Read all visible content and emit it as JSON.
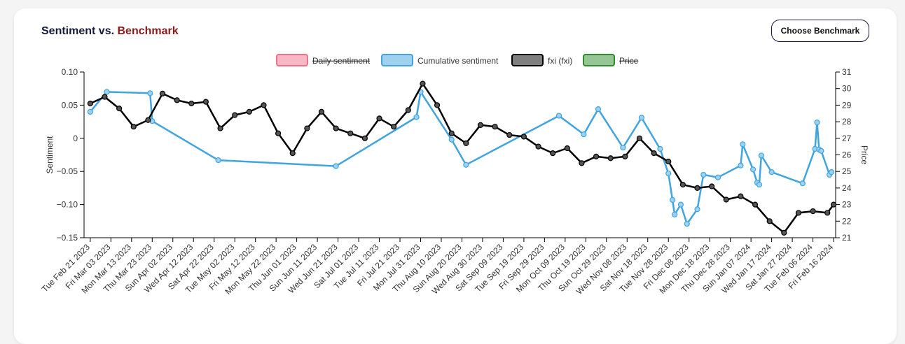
{
  "header": {
    "title": "Sentiment vs.",
    "title_highlight": "Benchmark",
    "button": "Choose Benchmark"
  },
  "chart_data": {
    "type": "line",
    "y_label": "Sentiment",
    "y2_label": "Price",
    "xlim": [
      "2023-02-18",
      "2024-02-17"
    ],
    "xticks": [
      {
        "value": "2023-02-21",
        "label": "Tue Feb 21 2023"
      },
      {
        "value": "2023-03-03",
        "label": "Fri Mar 03 2023"
      },
      {
        "value": "2023-03-13",
        "label": "Mon Mar 13 2023"
      },
      {
        "value": "2023-03-23",
        "label": "Thu Mar 23 2023"
      },
      {
        "value": "2023-04-02",
        "label": "Sun Apr 02 2023"
      },
      {
        "value": "2023-04-12",
        "label": "Wed Apr 12 2023"
      },
      {
        "value": "2023-04-22",
        "label": "Sat Apr 22 2023"
      },
      {
        "value": "2023-05-02",
        "label": "Tue May 02 2023"
      },
      {
        "value": "2023-05-12",
        "label": "Fri May 12 2023"
      },
      {
        "value": "2023-05-22",
        "label": "Mon May 22 2023"
      },
      {
        "value": "2023-06-01",
        "label": "Thu Jun 01 2023"
      },
      {
        "value": "2023-06-11",
        "label": "Sun Jun 11 2023"
      },
      {
        "value": "2023-06-21",
        "label": "Wed Jun 21 2023"
      },
      {
        "value": "2023-07-01",
        "label": "Sat Jul 01 2023"
      },
      {
        "value": "2023-07-11",
        "label": "Tue Jul 11 2023"
      },
      {
        "value": "2023-07-21",
        "label": "Fri Jul 21 2023"
      },
      {
        "value": "2023-07-31",
        "label": "Mon Jul 31 2023"
      },
      {
        "value": "2023-08-10",
        "label": "Thu Aug 10 2023"
      },
      {
        "value": "2023-08-20",
        "label": "Sun Aug 20 2023"
      },
      {
        "value": "2023-08-30",
        "label": "Wed Aug 30 2023"
      },
      {
        "value": "2023-09-09",
        "label": "Sat Sep 09 2023"
      },
      {
        "value": "2023-09-19",
        "label": "Tue Sep 19 2023"
      },
      {
        "value": "2023-09-29",
        "label": "Fri Sep 29 2023"
      },
      {
        "value": "2023-10-09",
        "label": "Mon Oct 09 2023"
      },
      {
        "value": "2023-10-19",
        "label": "Thu Oct 19 2023"
      },
      {
        "value": "2023-10-29",
        "label": "Sun Oct 29 2023"
      },
      {
        "value": "2023-11-08",
        "label": "Wed Nov 08 2023"
      },
      {
        "value": "2023-11-18",
        "label": "Sat Nov 18 2023"
      },
      {
        "value": "2023-11-28",
        "label": "Tue Nov 28 2023"
      },
      {
        "value": "2023-12-08",
        "label": "Fri Dec 08 2023"
      },
      {
        "value": "2023-12-18",
        "label": "Mon Dec 18 2023"
      },
      {
        "value": "2023-12-28",
        "label": "Thu Dec 28 2023"
      },
      {
        "value": "2024-01-07",
        "label": "Sun Jan 07 2024"
      },
      {
        "value": "2024-01-17",
        "label": "Wed Jan 17 2024"
      },
      {
        "value": "2024-01-27",
        "label": "Sat Jan 27 2024"
      },
      {
        "value": "2024-02-06",
        "label": "Tue Feb 06 2024"
      },
      {
        "value": "2024-02-16",
        "label": "Fri Feb 16 2024"
      }
    ],
    "ylim": [
      -0.15,
      0.1
    ],
    "yticks": [
      {
        "value": 0.1,
        "label": "0.10"
      },
      0.05,
      0,
      {
        "value": -0.05,
        "label": "−0.05"
      },
      {
        "value": -0.1,
        "label": "−0.10"
      },
      {
        "value": -0.15,
        "label": "−0.15"
      }
    ],
    "y2lim": [
      21,
      31
    ],
    "y2ticks": [
      21,
      22,
      23,
      24,
      25,
      26,
      27,
      28,
      29,
      30,
      31
    ],
    "series": [
      {
        "name": "Daily sentiment",
        "color": "#f0708c",
        "hidden": true
      },
      {
        "name": "Cumulative sentiment",
        "color": "#3fa4e0",
        "x": [
          "2023-02-21",
          "2023-03-01",
          "2023-03-22",
          "2023-03-23",
          "2023-04-24",
          "2023-06-20",
          "2023-07-29",
          "2023-07-31",
          "2023-08-15",
          "2023-08-22",
          "2023-10-06",
          "2023-10-18",
          "2023-10-25",
          "2023-11-06",
          "2023-11-15",
          "2023-11-24",
          "2023-11-28",
          "2023-11-30",
          "2023-12-01",
          "2023-12-04",
          "2023-12-07",
          "2023-12-12",
          "2023-12-15",
          "2023-12-22",
          "2024-01-02",
          "2024-01-03",
          "2024-01-08",
          "2024-01-10",
          "2024-01-11",
          "2024-01-12",
          "2024-01-17",
          "2024-02-01",
          "2024-02-07",
          "2024-02-08",
          "2024-02-09",
          "2024-02-10",
          "2024-02-14",
          "2024-02-15"
        ],
        "values": [
          0.04,
          0.07,
          0.068,
          0.026,
          -0.033,
          -0.042,
          0.032,
          0.07,
          -0.002,
          -0.04,
          0.034,
          0.006,
          0.044,
          -0.014,
          0.031,
          -0.016,
          -0.053,
          -0.093,
          -0.115,
          -0.1,
          -0.129,
          -0.107,
          -0.055,
          -0.059,
          -0.041,
          -0.009,
          -0.047,
          -0.067,
          -0.07,
          -0.026,
          -0.051,
          -0.068,
          -0.016,
          0.024,
          -0.017,
          -0.019,
          -0.055,
          -0.051
        ]
      },
      {
        "name": "fxi (fxi)",
        "color": "#000000",
        "axis": "y2",
        "x": [
          "2023-02-21",
          "2023-02-28",
          "2023-03-07",
          "2023-03-14",
          "2023-03-21",
          "2023-03-28",
          "2023-04-04",
          "2023-04-11",
          "2023-04-18",
          "2023-04-25",
          "2023-05-02",
          "2023-05-09",
          "2023-05-16",
          "2023-05-23",
          "2023-05-30",
          "2023-06-06",
          "2023-06-13",
          "2023-06-20",
          "2023-06-27",
          "2023-07-04",
          "2023-07-11",
          "2023-07-18",
          "2023-07-25",
          "2023-08-01",
          "2023-08-08",
          "2023-08-15",
          "2023-08-22",
          "2023-08-29",
          "2023-09-05",
          "2023-09-12",
          "2023-09-19",
          "2023-09-26",
          "2023-10-03",
          "2023-10-10",
          "2023-10-17",
          "2023-10-24",
          "2023-10-31",
          "2023-11-07",
          "2023-11-14",
          "2023-11-21",
          "2023-11-28",
          "2023-12-05",
          "2023-12-12",
          "2023-12-19",
          "2023-12-26",
          "2024-01-02",
          "2024-01-09",
          "2024-01-16",
          "2024-01-23",
          "2024-01-30",
          "2024-02-06",
          "2024-02-13",
          "2024-02-16"
        ],
        "values": [
          29.1,
          29.5,
          28.8,
          27.7,
          28.1,
          29.7,
          29.3,
          29.1,
          29.2,
          27.6,
          28.4,
          28.6,
          29.0,
          27.3,
          26.1,
          27.6,
          28.6,
          27.6,
          27.3,
          27.0,
          28.2,
          27.7,
          28.7,
          30.3,
          29.0,
          27.3,
          26.7,
          27.8,
          27.7,
          27.2,
          27.1,
          26.5,
          26.1,
          26.4,
          25.5,
          25.9,
          25.8,
          25.9,
          27.0,
          26.1,
          25.6,
          24.2,
          24.0,
          24.1,
          23.3,
          23.5,
          23.0,
          22.0,
          21.3,
          22.5,
          22.6,
          22.5,
          23.0
        ]
      },
      {
        "name": "Price",
        "color": "#2e8b2e",
        "hidden": true
      }
    ]
  }
}
